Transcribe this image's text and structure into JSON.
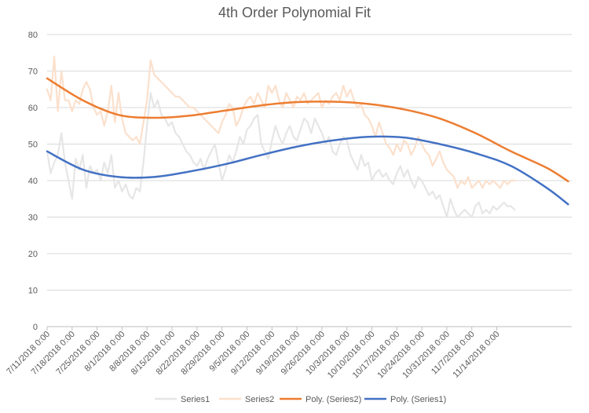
{
  "chart_data": {
    "type": "line",
    "title": "4th Order Polynomial Fit",
    "xlabel": "",
    "ylabel": "",
    "ylim": [
      0,
      80
    ],
    "yticks": [
      0,
      10,
      20,
      30,
      40,
      50,
      60,
      70,
      80
    ],
    "x_start": "7/11/2018",
    "x_end": "11/20/2018",
    "x_ticks": [
      "7/11/2018 0:00",
      "7/18/2018 0:00",
      "7/25/2018 0:00",
      "8/1/2018 0:00",
      "8/8/2018 0:00",
      "8/15/2018 0:00",
      "8/22/2018 0:00",
      "8/29/2018 0:00",
      "9/5/2018 0:00",
      "9/12/2018 0:00",
      "9/19/2018 0:00",
      "9/26/2018 0:00",
      "10/3/2018 0:00",
      "10/10/2018 0:00",
      "10/17/2018 0:00",
      "10/24/2018 0:00",
      "10/31/2018 0:00",
      "11/7/2018 0:00",
      "11/14/2018 0:00"
    ],
    "grid": "horizontal",
    "legend_position": "bottom",
    "series": [
      {
        "name": "Series1",
        "color": "#e6e6e6",
        "width": 2.2,
        "smooth": false,
        "values": [
          [
            0,
            48
          ],
          [
            1,
            42
          ],
          [
            2,
            45
          ],
          [
            3,
            47
          ],
          [
            4,
            53
          ],
          [
            5,
            45
          ],
          [
            6,
            40
          ],
          [
            7,
            35
          ],
          [
            8,
            46
          ],
          [
            9,
            43
          ],
          [
            10,
            47
          ],
          [
            11,
            38
          ],
          [
            12,
            44
          ],
          [
            13,
            42
          ],
          [
            14,
            43
          ],
          [
            15,
            40
          ],
          [
            16,
            45
          ],
          [
            17,
            42
          ],
          [
            18,
            47
          ],
          [
            19,
            38
          ],
          [
            20,
            40
          ],
          [
            21,
            37
          ],
          [
            22,
            39
          ],
          [
            23,
            36
          ],
          [
            24,
            35
          ],
          [
            25,
            38
          ],
          [
            26,
            37
          ],
          [
            27,
            45
          ],
          [
            28,
            55
          ],
          [
            29,
            64
          ],
          [
            30,
            60
          ],
          [
            31,
            62
          ],
          [
            32,
            58
          ],
          [
            33,
            57
          ],
          [
            34,
            55
          ],
          [
            35,
            56
          ],
          [
            36,
            53
          ],
          [
            37,
            52
          ],
          [
            38,
            50
          ],
          [
            39,
            48
          ],
          [
            40,
            47
          ],
          [
            41,
            45
          ],
          [
            42,
            44
          ],
          [
            43,
            46
          ],
          [
            44,
            43
          ],
          [
            45,
            46
          ],
          [
            46,
            48
          ],
          [
            47,
            50
          ],
          [
            48,
            45
          ],
          [
            49,
            40
          ],
          [
            50,
            43
          ],
          [
            51,
            47
          ],
          [
            52,
            45
          ],
          [
            53,
            48
          ],
          [
            54,
            52
          ],
          [
            55,
            50
          ],
          [
            56,
            54
          ],
          [
            57,
            55
          ],
          [
            58,
            57
          ],
          [
            59,
            58
          ],
          [
            60,
            50
          ],
          [
            61,
            48
          ],
          [
            62,
            46
          ],
          [
            63,
            51
          ],
          [
            64,
            55
          ],
          [
            65,
            52
          ],
          [
            66,
            50
          ],
          [
            67,
            53
          ],
          [
            68,
            55
          ],
          [
            69,
            52
          ],
          [
            70,
            51
          ],
          [
            71,
            54
          ],
          [
            72,
            57
          ],
          [
            73,
            56
          ],
          [
            74,
            53
          ],
          [
            75,
            57
          ],
          [
            76,
            55
          ],
          [
            77,
            53
          ],
          [
            78,
            50
          ],
          [
            79,
            52
          ],
          [
            80,
            48
          ],
          [
            81,
            47
          ],
          [
            82,
            50
          ],
          [
            83,
            52
          ],
          [
            84,
            51
          ],
          [
            85,
            47
          ],
          [
            86,
            45
          ],
          [
            87,
            43
          ],
          [
            88,
            47
          ],
          [
            89,
            44
          ],
          [
            90,
            45
          ],
          [
            91,
            40
          ],
          [
            92,
            42
          ],
          [
            93,
            43
          ],
          [
            94,
            41
          ],
          [
            95,
            42
          ],
          [
            96,
            40
          ],
          [
            97,
            39
          ],
          [
            98,
            42
          ],
          [
            99,
            44
          ],
          [
            100,
            41
          ],
          [
            101,
            43
          ],
          [
            102,
            40
          ],
          [
            103,
            38
          ],
          [
            104,
            41
          ],
          [
            105,
            40
          ],
          [
            106,
            38
          ],
          [
            107,
            36
          ],
          [
            108,
            37
          ],
          [
            109,
            35
          ],
          [
            110,
            36
          ],
          [
            111,
            33
          ],
          [
            112,
            30
          ],
          [
            113,
            35
          ],
          [
            114,
            32
          ],
          [
            115,
            30
          ],
          [
            116,
            31
          ],
          [
            117,
            32
          ],
          [
            118,
            31
          ],
          [
            119,
            30
          ],
          [
            120,
            33
          ],
          [
            121,
            34
          ],
          [
            122,
            31
          ],
          [
            123,
            32
          ],
          [
            124,
            31
          ],
          [
            125,
            33
          ],
          [
            126,
            32
          ],
          [
            127,
            33
          ],
          [
            128,
            34
          ],
          [
            129,
            33
          ],
          [
            130,
            33
          ],
          [
            131,
            32
          ]
        ]
      },
      {
        "name": "Series2",
        "color": "#fbe0cc",
        "width": 2.2,
        "smooth": false,
        "values": [
          [
            0,
            65
          ],
          [
            1,
            62
          ],
          [
            2,
            74
          ],
          [
            3,
            59
          ],
          [
            4,
            70
          ],
          [
            5,
            62
          ],
          [
            6,
            62
          ],
          [
            7,
            59
          ],
          [
            8,
            62
          ],
          [
            9,
            61
          ],
          [
            10,
            65
          ],
          [
            11,
            67
          ],
          [
            12,
            65
          ],
          [
            13,
            60
          ],
          [
            14,
            58
          ],
          [
            15,
            59
          ],
          [
            16,
            55
          ],
          [
            17,
            59
          ],
          [
            18,
            66
          ],
          [
            19,
            56
          ],
          [
            20,
            64
          ],
          [
            21,
            57
          ],
          [
            22,
            53
          ],
          [
            23,
            52
          ],
          [
            24,
            51
          ],
          [
            25,
            52
          ],
          [
            26,
            50
          ],
          [
            27,
            56
          ],
          [
            28,
            62
          ],
          [
            29,
            73
          ],
          [
            30,
            69
          ],
          [
            31,
            68
          ],
          [
            32,
            67
          ],
          [
            33,
            66
          ],
          [
            34,
            65
          ],
          [
            35,
            64
          ],
          [
            36,
            63
          ],
          [
            37,
            63
          ],
          [
            38,
            62
          ],
          [
            39,
            61
          ],
          [
            40,
            60
          ],
          [
            41,
            60
          ],
          [
            42,
            59
          ],
          [
            43,
            58
          ],
          [
            44,
            57
          ],
          [
            45,
            56
          ],
          [
            46,
            55
          ],
          [
            47,
            54
          ],
          [
            48,
            53
          ],
          [
            49,
            56
          ],
          [
            50,
            58
          ],
          [
            51,
            61
          ],
          [
            52,
            60
          ],
          [
            53,
            55
          ],
          [
            54,
            57
          ],
          [
            55,
            60
          ],
          [
            56,
            62
          ],
          [
            57,
            63
          ],
          [
            58,
            61
          ],
          [
            59,
            64
          ],
          [
            60,
            62
          ],
          [
            61,
            60
          ],
          [
            62,
            66
          ],
          [
            63,
            64
          ],
          [
            64,
            66
          ],
          [
            65,
            62
          ],
          [
            66,
            60
          ],
          [
            67,
            64
          ],
          [
            68,
            62
          ],
          [
            69,
            60
          ],
          [
            70,
            63
          ],
          [
            71,
            62
          ],
          [
            72,
            64
          ],
          [
            73,
            61
          ],
          [
            74,
            62
          ],
          [
            75,
            63
          ],
          [
            76,
            64
          ],
          [
            77,
            60
          ],
          [
            78,
            62
          ],
          [
            79,
            61
          ],
          [
            80,
            63
          ],
          [
            81,
            64
          ],
          [
            82,
            62
          ],
          [
            83,
            66
          ],
          [
            84,
            63
          ],
          [
            85,
            65
          ],
          [
            86,
            62
          ],
          [
            87,
            60
          ],
          [
            88,
            61
          ],
          [
            89,
            58
          ],
          [
            90,
            57
          ],
          [
            91,
            55
          ],
          [
            92,
            52
          ],
          [
            93,
            56
          ],
          [
            94,
            53
          ],
          [
            95,
            50
          ],
          [
            96,
            49
          ],
          [
            97,
            47
          ],
          [
            98,
            50
          ],
          [
            99,
            48
          ],
          [
            100,
            51
          ],
          [
            101,
            50
          ],
          [
            102,
            47
          ],
          [
            103,
            49
          ],
          [
            104,
            52
          ],
          [
            105,
            50
          ],
          [
            106,
            48
          ],
          [
            107,
            47
          ],
          [
            108,
            44
          ],
          [
            109,
            46
          ],
          [
            110,
            48
          ],
          [
            111,
            45
          ],
          [
            112,
            43
          ],
          [
            113,
            42
          ],
          [
            114,
            41
          ],
          [
            115,
            38
          ],
          [
            116,
            40
          ],
          [
            117,
            39
          ],
          [
            118,
            41
          ],
          [
            119,
            38
          ],
          [
            120,
            39
          ],
          [
            121,
            40
          ],
          [
            122,
            38
          ],
          [
            123,
            40
          ],
          [
            124,
            39
          ],
          [
            125,
            40
          ],
          [
            126,
            39
          ],
          [
            127,
            38
          ],
          [
            128,
            40
          ],
          [
            129,
            39
          ],
          [
            130,
            40
          ],
          [
            131,
            40
          ]
        ]
      },
      {
        "name": "Poly. (Series2)",
        "color": "#ed7d31",
        "width": 2.5,
        "smooth": true,
        "values": [
          [
            0,
            68
          ],
          [
            10,
            62
          ],
          [
            20,
            58
          ],
          [
            30,
            57.2
          ],
          [
            40,
            57.8
          ],
          [
            50,
            59.2
          ],
          [
            60,
            60.6
          ],
          [
            70,
            61.5
          ],
          [
            80,
            61.6
          ],
          [
            90,
            61
          ],
          [
            100,
            59.5
          ],
          [
            110,
            57
          ],
          [
            120,
            53
          ],
          [
            130,
            48
          ],
          [
            140,
            43.5
          ],
          [
            146,
            39.8
          ]
        ]
      },
      {
        "name": "Poly. (Series1)",
        "color": "#4472c4",
        "width": 2.5,
        "smooth": true,
        "values": [
          [
            0,
            48
          ],
          [
            10,
            43
          ],
          [
            20,
            41
          ],
          [
            30,
            41
          ],
          [
            40,
            42.5
          ],
          [
            50,
            44.5
          ],
          [
            60,
            47
          ],
          [
            70,
            49.3
          ],
          [
            80,
            51
          ],
          [
            90,
            52
          ],
          [
            100,
            51.8
          ],
          [
            110,
            50
          ],
          [
            120,
            47.5
          ],
          [
            130,
            44
          ],
          [
            140,
            38
          ],
          [
            146,
            33.5
          ]
        ]
      }
    ],
    "legend": [
      "Series1",
      "Series2",
      "Poly. (Series2)",
      "Poly. (Series1)"
    ]
  }
}
